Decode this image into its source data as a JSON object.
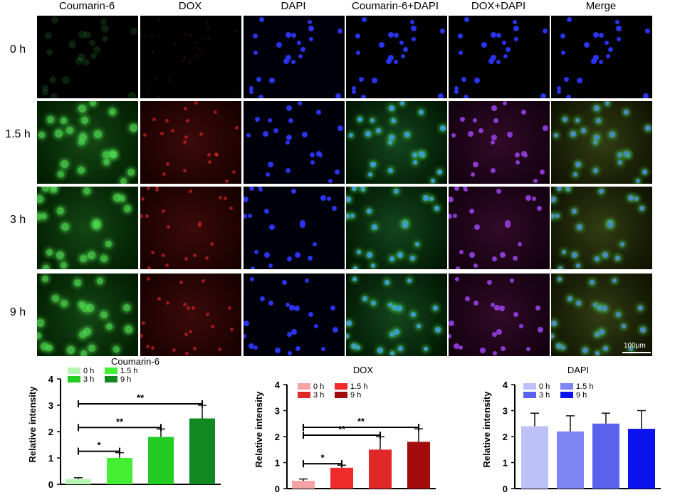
{
  "figure": {
    "column_headers": [
      "Coumarin-6",
      "DOX",
      "DAPI",
      "Coumarin-6+DAPI",
      "DOX+DAPI",
      "Merge"
    ],
    "row_labels": [
      "0 h",
      "1.5 h",
      "3 h",
      "9 h"
    ],
    "scale_bar_label": "100μm"
  },
  "chart_data": [
    {
      "type": "bar",
      "title": "Coumarin-6",
      "ylabel": "Relative intensity",
      "ylim": [
        0,
        4
      ],
      "yticks": [
        "0",
        "1",
        "2",
        "3",
        "4"
      ],
      "categories": [
        "0 h",
        "1.5 h",
        "3 h",
        "9 h"
      ],
      "values": [
        0.2,
        1.0,
        1.8,
        2.5
      ],
      "errors": [
        0.05,
        0.2,
        0.3,
        0.5
      ],
      "colors": [
        "#b6f5b2",
        "#44ee33",
        "#22cc22",
        "#118822"
      ],
      "legend": [
        "0 h",
        "1.5 h",
        "3 h",
        "9 h"
      ],
      "legend_placement": "top-left",
      "significance": [
        {
          "from": "0 h",
          "to": "1.5 h",
          "label": "*"
        },
        {
          "from": "0 h",
          "to": "3 h",
          "label": "**"
        },
        {
          "from": "0 h",
          "to": "9 h",
          "label": "**"
        }
      ]
    },
    {
      "type": "bar",
      "title": "DOX",
      "ylabel": "Relative intensity",
      "ylim": [
        0,
        4
      ],
      "yticks": [
        "0",
        "1",
        "2",
        "3",
        "4"
      ],
      "categories": [
        "0 h",
        "1.5 h",
        "3 h",
        "9 h"
      ],
      "values": [
        0.3,
        0.8,
        1.5,
        1.8
      ],
      "errors": [
        0.07,
        0.1,
        0.5,
        0.5
      ],
      "colors": [
        "#f5a3a3",
        "#ee2a2a",
        "#e02828",
        "#a30c0c"
      ],
      "legend": [
        "0 h",
        "1.5 h",
        "3 h",
        "9 h"
      ],
      "legend_placement": "top-left",
      "significance": [
        {
          "from": "0 h",
          "to": "1.5 h",
          "label": "*"
        },
        {
          "from": "0 h",
          "to": "3 h",
          "label": "**"
        },
        {
          "from": "0 h",
          "to": "9 h",
          "label": "**"
        }
      ]
    },
    {
      "type": "bar",
      "title": "DAPI",
      "ylabel": "Relative intensity",
      "ylim": [
        0,
        4
      ],
      "yticks": [
        "0",
        "1",
        "2",
        "3",
        "4"
      ],
      "categories": [
        "0 h",
        "1.5 h",
        "3 h",
        "9 h"
      ],
      "values": [
        2.4,
        2.2,
        2.5,
        2.3
      ],
      "errors": [
        0.5,
        0.6,
        0.4,
        0.7
      ],
      "colors": [
        "#bcc2f7",
        "#7d86f3",
        "#5a62ee",
        "#0a12ee"
      ],
      "legend": [
        "0 h",
        "1.5 h",
        "3 h",
        "9 h"
      ],
      "legend_placement": "top-left",
      "significance": []
    }
  ]
}
